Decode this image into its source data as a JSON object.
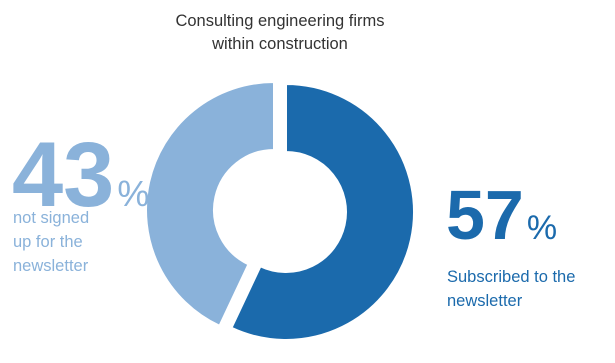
{
  "chart_data": {
    "type": "pie",
    "title_lines": [
      "Consulting engineering firms",
      "within construction"
    ],
    "slices": [
      {
        "value": 57,
        "percent_sign": "%",
        "label_lines": [
          "Subscribed to the",
          "newsletter"
        ],
        "color": "#1b6aac"
      },
      {
        "value": 43,
        "percent_sign": "%",
        "label_lines": [
          "not signed",
          "up for the",
          "newsletter"
        ],
        "color": "#8ab2da"
      }
    ],
    "donut": true,
    "legend": "none"
  }
}
